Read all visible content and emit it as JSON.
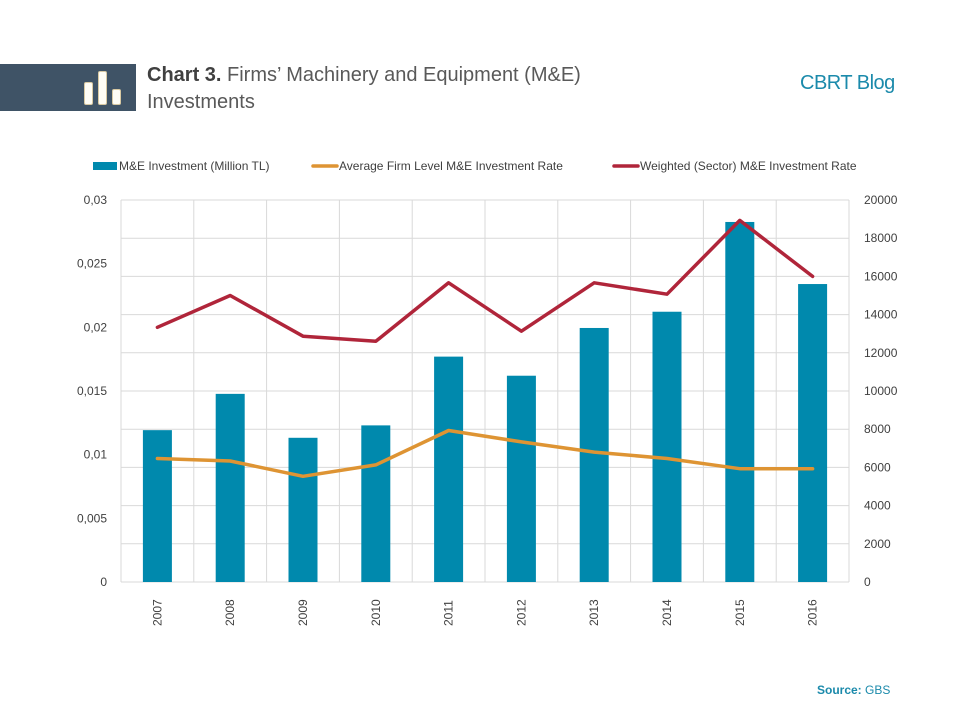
{
  "header": {
    "title_lead": "Chart 3.",
    "title_rest": " Firms’ Machinery and Equipment (M&E) Investments",
    "brand": "CBRT Blog",
    "icon": "bar-chart-icon"
  },
  "footer": {
    "source_label": "Source:",
    "source_value": " GBS"
  },
  "colors": {
    "bars": "#0089ad",
    "average_line": "#de9433",
    "weighted_line": "#b0253a",
    "header_band": "#3f5366",
    "brand": "#1b8aab",
    "grid": "#d9d9d9"
  },
  "chart_data": {
    "type": "bar",
    "title": "Chart 3. Firms’ Machinery and Equipment (M&E) Investments",
    "categories": [
      "2007",
      "2008",
      "2009",
      "2010",
      "2011",
      "2012",
      "2013",
      "2014",
      "2015",
      "2016"
    ],
    "series": [
      {
        "name": "M&E Investment (Million TL)",
        "type": "bar",
        "axis": "right",
        "values": [
          7950,
          9850,
          7550,
          8200,
          11800,
          10800,
          13300,
          14150,
          18850,
          15600
        ]
      },
      {
        "name": "Average Firm Level M&E Investment Rate",
        "type": "line",
        "axis": "left",
        "values": [
          0.0097,
          0.0095,
          0.0083,
          0.0092,
          0.0119,
          0.011,
          0.0102,
          0.0097,
          0.0089,
          0.0089
        ]
      },
      {
        "name": "Weighted (Sector) M&E Investment Rate",
        "type": "line",
        "axis": "left",
        "values": [
          0.02,
          0.0225,
          0.0193,
          0.0189,
          0.0235,
          0.0197,
          0.0235,
          0.0226,
          0.0284,
          0.024
        ]
      }
    ],
    "y_left": {
      "range": [
        0,
        0.03
      ],
      "ticks": [
        0,
        0.005,
        0.01,
        0.015,
        0.02,
        0.025,
        0.03
      ],
      "tick_labels": [
        "0",
        "0,005",
        "0,01",
        "0,015",
        "0,02",
        "0,025",
        "0,03"
      ]
    },
    "y_right": {
      "range": [
        0,
        20000
      ],
      "ticks": [
        0,
        2000,
        4000,
        6000,
        8000,
        10000,
        12000,
        14000,
        16000,
        18000,
        20000
      ],
      "tick_labels": [
        "0",
        "2000",
        "4000",
        "6000",
        "8000",
        "10000",
        "12000",
        "14000",
        "16000",
        "18000",
        "20000"
      ]
    },
    "grid": true,
    "legend_position": "top",
    "xlabel": "",
    "ylabel": ""
  }
}
